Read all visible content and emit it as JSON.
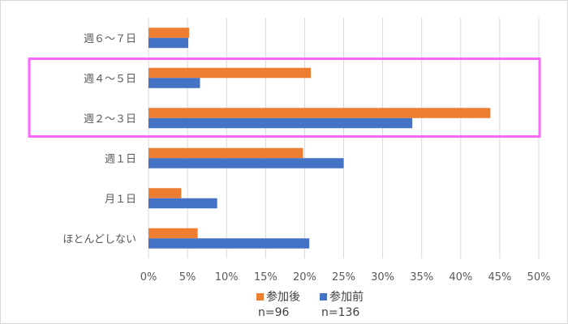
{
  "chart_data": {
    "type": "bar",
    "orientation": "horizontal",
    "categories": [
      "週６～７日",
      "週４～５日",
      "週２～３日",
      "週１日",
      "月１日",
      "ほとんどしない"
    ],
    "series": [
      {
        "name": "参加後",
        "note": "n=96",
        "color": "#ED7D31",
        "values": [
          5.2,
          20.8,
          43.8,
          19.8,
          4.2,
          6.3
        ]
      },
      {
        "name": "参加前",
        "note": "n=136",
        "color": "#4472C4",
        "values": [
          5.1,
          6.6,
          33.8,
          25.0,
          8.8,
          20.6
        ]
      }
    ],
    "x_ticks": [
      "0%",
      "5%",
      "10%",
      "15%",
      "20%",
      "25%",
      "30%",
      "35%",
      "40%",
      "45%",
      "50%"
    ],
    "xlim": [
      0,
      50
    ],
    "grid": true,
    "legend_position": "bottom",
    "highlight": {
      "categories": [
        "週４～５日",
        "週２～３日"
      ],
      "color": "#FF66FF"
    }
  }
}
